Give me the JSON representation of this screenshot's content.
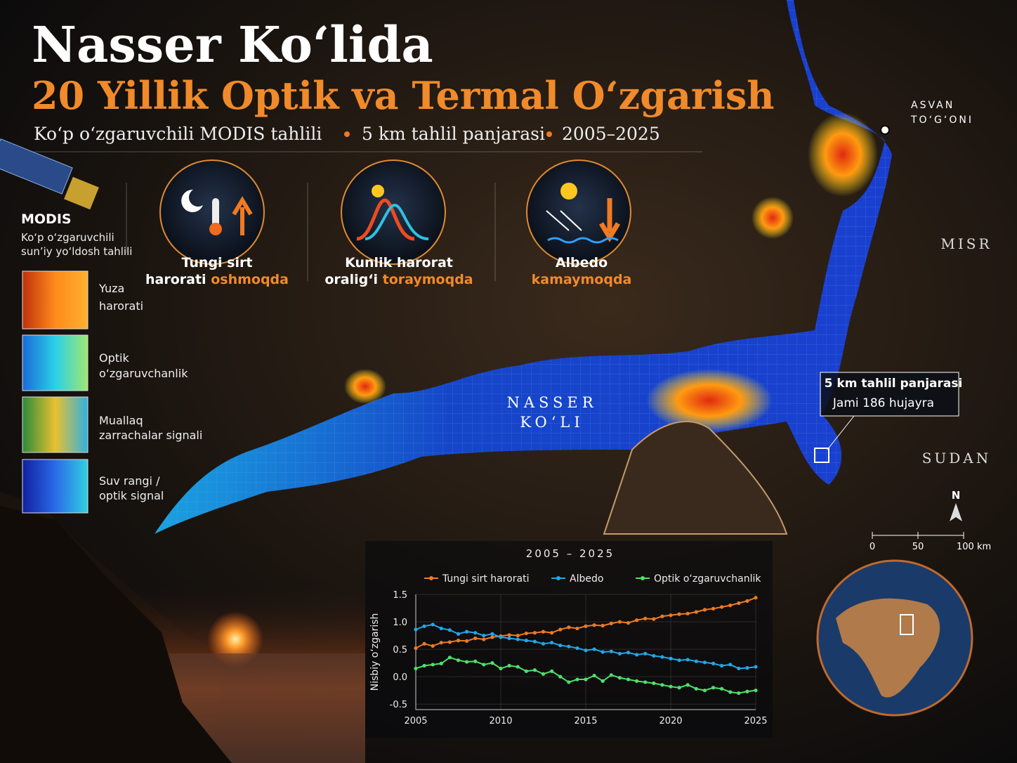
{
  "header": {
    "title": "Nasser Ko‘lida",
    "subtitle": "20 Yillik Optik va Termal O‘zgarish",
    "tagline": [
      "Ko‘p o‘zgaruvchili MODIS tahlili",
      "5 km tahlil panjarasi",
      "2005–2025"
    ]
  },
  "modis": {
    "title": "MODIS",
    "description": [
      "Ko‘p o‘zgaruvchili",
      "sun’iy yo‘ldosh tahlili"
    ],
    "layers": [
      [
        "Yuza",
        "harorati"
      ],
      [
        "Optik",
        "o‘zgaruvchanlik"
      ],
      [
        "Muallaq",
        "zarrachalar signali"
      ],
      [
        "Suv rangi /",
        "optik signal"
      ]
    ]
  },
  "indicators": [
    {
      "title": "Tungi sirt",
      "rest": "harorati",
      "highlight": "oshmoqda"
    },
    {
      "title": "Kunlik harorat",
      "rest": "oralig‘i",
      "highlight": "toraymoqda"
    },
    {
      "title": "Albedo",
      "highlight": "kamaymoqda"
    }
  ],
  "map": {
    "dam": [
      "ASVAN",
      "TO‘G‘ONI"
    ],
    "countries": [
      "MISR",
      "SUDAN"
    ],
    "lake": [
      "NASSER",
      "KO‘LI"
    ],
    "grid_box": [
      "5 km tahlil panjarasi",
      "Jami 186 hujayra"
    ],
    "north": "N",
    "scale": [
      0,
      50,
      {
        "value": 100,
        "label": "100 km"
      }
    ]
  },
  "chart_data": {
    "type": "line",
    "title": "2005 – 2025",
    "y_label": "Nisbiy o‘zgarish",
    "x": [
      2005,
      2005.5,
      2006,
      2006.5,
      2007,
      2007.5,
      2008,
      2008.5,
      2009,
      2009.5,
      2010,
      2010.5,
      2011,
      2011.5,
      2012,
      2012.5,
      2013,
      2013.5,
      2014,
      2014.5,
      2015,
      2015.5,
      2016,
      2016.5,
      2017,
      2017.5,
      2018,
      2018.5,
      2019,
      2019.5,
      2020,
      2020.5,
      2021,
      2021.5,
      2022,
      2022.5,
      2023,
      2023.5,
      2024,
      2024.5,
      2025
    ],
    "series": [
      {
        "name": "Tungi sirt harorati",
        "color": "#f07a22",
        "values": [
          0.52,
          0.6,
          0.56,
          0.62,
          0.63,
          0.66,
          0.65,
          0.7,
          0.68,
          0.72,
          0.74,
          0.76,
          0.75,
          0.79,
          0.8,
          0.82,
          0.8,
          0.86,
          0.9,
          0.88,
          0.92,
          0.94,
          0.93,
          0.97,
          1.0,
          0.98,
          1.03,
          1.06,
          1.05,
          1.1,
          1.12,
          1.14,
          1.15,
          1.18,
          1.22,
          1.24,
          1.27,
          1.3,
          1.34,
          1.38,
          1.44
        ]
      },
      {
        "name": "Albedo",
        "color": "#22a6e8",
        "values": [
          0.86,
          0.92,
          0.95,
          0.88,
          0.85,
          0.78,
          0.82,
          0.8,
          0.75,
          0.78,
          0.72,
          0.7,
          0.68,
          0.66,
          0.64,
          0.6,
          0.62,
          0.57,
          0.55,
          0.52,
          0.48,
          0.5,
          0.45,
          0.46,
          0.42,
          0.44,
          0.4,
          0.42,
          0.38,
          0.36,
          0.33,
          0.3,
          0.31,
          0.28,
          0.26,
          0.24,
          0.2,
          0.22,
          0.15,
          0.16,
          0.18
        ]
      },
      {
        "name": "Optik o‘zgaruvchanlik",
        "color": "#4fe06a",
        "values": [
          0.15,
          0.2,
          0.22,
          0.24,
          0.35,
          0.3,
          0.27,
          0.28,
          0.22,
          0.25,
          0.15,
          0.2,
          0.18,
          0.1,
          0.12,
          0.05,
          0.1,
          0,
          -0.1,
          -0.05,
          -0.05,
          0.02,
          -0.08,
          0.03,
          -0.02,
          -0.05,
          -0.08,
          -0.1,
          -0.12,
          -0.15,
          -0.18,
          -0.2,
          -0.15,
          -0.22,
          -0.25,
          -0.2,
          -0.22,
          -0.28,
          -0.3,
          -0.27,
          -0.25
        ]
      }
    ],
    "xlim": [
      2005,
      2025
    ],
    "xticks": [
      2005,
      2010,
      2015,
      2020,
      2025
    ],
    "ylim": [
      -0.6,
      1.5
    ],
    "yticks": [
      -0.5,
      {
        "value": 0,
        "label": "0.0"
      },
      0.5,
      {
        "value": 1,
        "label": "1.0"
      },
      1.5
    ],
    "grid": true
  }
}
